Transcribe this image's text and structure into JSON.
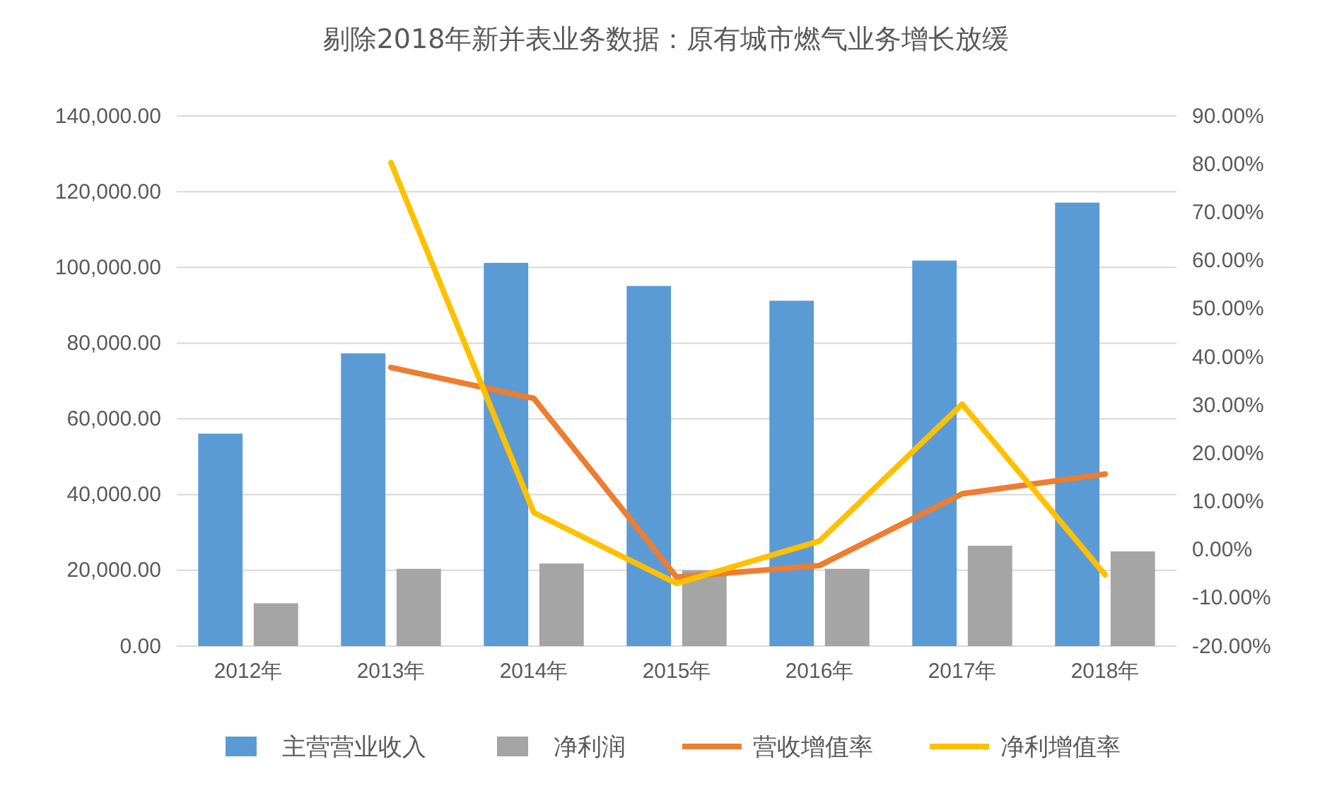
{
  "chart_data": {
    "type": "bar",
    "title": "剔除2018年新并表业务数据：原有城市燃气业务增长放缓",
    "categories": [
      "2012年",
      "2013年",
      "2014年",
      "2015年",
      "2016年",
      "2017年",
      "2018年"
    ],
    "series": [
      {
        "name": "主营营业收入",
        "color": "#5b9bd5",
        "values": [
          56100,
          77300,
          101200,
          95100,
          91200,
          101800,
          117100
        ]
      },
      {
        "name": "净利润",
        "color": "#a5a5a5",
        "values": [
          11300,
          20400,
          21800,
          20000,
          20400,
          26500,
          25000
        ]
      },
      {
        "name": "营收增值率",
        "type": "line",
        "axis": "y2",
        "color": "#ed7d31",
        "values": [
          null,
          37.8,
          31.4,
          -5.7,
          -3.3,
          11.6,
          15.7
        ]
      },
      {
        "name": "净利增值率",
        "type": "line",
        "axis": "y2",
        "color": "#ffc000",
        "values": [
          null,
          80.3,
          7.7,
          -7.0,
          1.8,
          30.2,
          -5.2
        ]
      }
    ],
    "ylim": [
      0,
      140000
    ],
    "yticks": [
      {
        "value": 0,
        "label": "0.00"
      },
      {
        "value": 20000,
        "label": "20,000.00"
      },
      {
        "value": 40000,
        "label": "40,000.00"
      },
      {
        "value": 60000,
        "label": "60,000.00"
      },
      {
        "value": 80000,
        "label": "80,000.00"
      },
      {
        "value": 100000,
        "label": "100,000.00"
      },
      {
        "value": 120000,
        "label": "120,000.00"
      },
      {
        "value": 140000,
        "label": "140,000.00"
      }
    ],
    "y2lim": [
      -20,
      90
    ],
    "y2ticks": [
      {
        "value": -20,
        "label": "-20.00%"
      },
      {
        "value": -10,
        "label": "-10.00%"
      },
      {
        "value": 0,
        "label": "0.00%"
      },
      {
        "value": 10,
        "label": "10.00%"
      },
      {
        "value": 20,
        "label": "20.00%"
      },
      {
        "value": 30,
        "label": "30.00%"
      },
      {
        "value": 40,
        "label": "40.00%"
      },
      {
        "value": 50,
        "label": "50.00%"
      },
      {
        "value": 60,
        "label": "60.00%"
      },
      {
        "value": 70,
        "label": "70.00%"
      },
      {
        "value": 80,
        "label": "80.00%"
      },
      {
        "value": 90,
        "label": "90.00%"
      }
    ],
    "grid": "y",
    "legend": "bottom",
    "marker": "none",
    "line_style": "solid"
  }
}
